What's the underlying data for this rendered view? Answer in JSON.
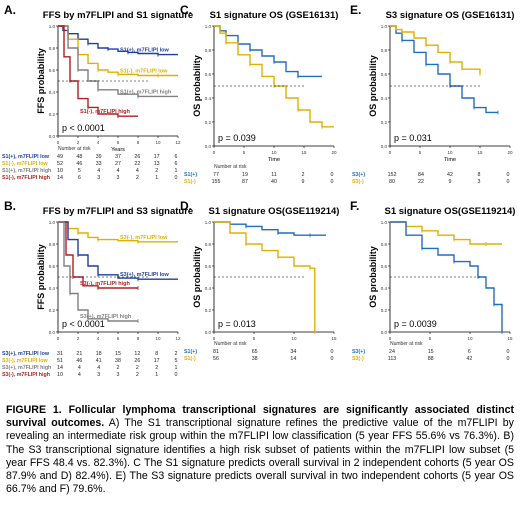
{
  "panels": {
    "A": {
      "letter": "A.",
      "title": "FFS by m7FLIPI and S1 signature",
      "ylabel": "FFS probability",
      "xlabel": "Years",
      "pvalue": "p < 0.0001",
      "xticks": [
        "0",
        "2",
        "4",
        "6",
        "8",
        "10",
        "12"
      ],
      "yticks": [
        "0.0",
        "0.2",
        "0.4",
        "0.6",
        "0.8",
        "1.0"
      ],
      "curves": [
        {
          "label": "S1(+), m7FLIPI low",
          "color": "#1f3f9f",
          "points": [
            [
              0,
              1.0
            ],
            [
              0.5,
              0.96
            ],
            [
              1,
              0.93
            ],
            [
              2,
              0.88
            ],
            [
              3,
              0.84
            ],
            [
              4,
              0.8
            ],
            [
              5,
              0.79
            ],
            [
              6,
              0.77
            ],
            [
              7,
              0.76
            ],
            [
              8,
              0.75
            ],
            [
              10,
              0.74
            ],
            [
              12,
              0.74
            ]
          ]
        },
        {
          "label": "S1(-), m7FLIPI low",
          "color": "#e0b000",
          "points": [
            [
              0,
              1.0
            ],
            [
              1,
              0.88
            ],
            [
              2,
              0.74
            ],
            [
              3,
              0.66
            ],
            [
              4,
              0.6
            ],
            [
              5,
              0.58
            ],
            [
              6,
              0.56
            ],
            [
              8,
              0.55
            ],
            [
              10,
              0.55
            ],
            [
              12,
              0.55
            ]
          ]
        },
        {
          "label": "S1(+), m7FLIPI high",
          "color": "#808080",
          "points": [
            [
              0,
              1.0
            ],
            [
              1,
              0.8
            ],
            [
              2,
              0.6
            ],
            [
              3,
              0.5
            ],
            [
              4,
              0.42
            ],
            [
              6,
              0.38
            ],
            [
              8,
              0.36
            ],
            [
              12,
              0.36
            ]
          ]
        },
        {
          "label": "S1(-), m7FLIPI high",
          "color": "#b02020",
          "points": [
            [
              0,
              1.0
            ],
            [
              0.6,
              0.72
            ],
            [
              1.2,
              0.5
            ],
            [
              2,
              0.34
            ],
            [
              3,
              0.26
            ],
            [
              4,
              0.2
            ],
            [
              6,
              0.18
            ],
            [
              8,
              0.18
            ]
          ]
        }
      ],
      "risk": {
        "heading": "Number at risk",
        "rows": [
          {
            "label": "S1(+), m7FLIPI low",
            "color": "#1f3f9f",
            "values": [
              "49",
              "48",
              "39",
              "37",
              "26",
              "17",
              "6"
            ]
          },
          {
            "label": "S1(-), m7FLIPI low",
            "color": "#e0b000",
            "values": [
              "52",
              "46",
              "33",
              "27",
              "22",
              "13",
              "6"
            ]
          },
          {
            "label": "S1(+), m7FLIPI high",
            "color": "#808080",
            "values": [
              "10",
              "5",
              "4",
              "4",
              "4",
              "2",
              "1"
            ]
          },
          {
            "label": "S1(-), m7FLIPI high",
            "color": "#b02020",
            "values": [
              "14",
              "6",
              "3",
              "3",
              "2",
              "1",
              "0"
            ]
          }
        ]
      }
    },
    "B": {
      "letter": "B.",
      "title": "FFS by m7FLIPI and S3 signature",
      "ylabel": "FFS probability",
      "xlabel": "",
      "pvalue": "p < 0.0001",
      "xticks": [
        "0",
        "2",
        "4",
        "6",
        "8",
        "10",
        "12"
      ],
      "yticks": [
        "0.0",
        "0.2",
        "0.4",
        "0.6",
        "0.8",
        "1.0"
      ],
      "curves": [
        {
          "label": "S3(-), m7FLIPI low",
          "color": "#e0b000",
          "points": [
            [
              0,
              1.0
            ],
            [
              1,
              0.94
            ],
            [
              2,
              0.9
            ],
            [
              3,
              0.86
            ],
            [
              4,
              0.84
            ],
            [
              6,
              0.83
            ],
            [
              8,
              0.82
            ],
            [
              12,
              0.82
            ]
          ]
        },
        {
          "label": "S3(+), m7FLIPI low",
          "color": "#1f3f9f",
          "points": [
            [
              0,
              1.0
            ],
            [
              1,
              0.84
            ],
            [
              2,
              0.7
            ],
            [
              3,
              0.6
            ],
            [
              4,
              0.52
            ],
            [
              6,
              0.49
            ],
            [
              8,
              0.48
            ],
            [
              12,
              0.48
            ]
          ]
        },
        {
          "label": "S3(-), m7FLIPI high",
          "color": "#b02020",
          "points": [
            [
              0,
              1.0
            ],
            [
              0.8,
              0.7
            ],
            [
              1.5,
              0.5
            ],
            [
              2.5,
              0.42
            ],
            [
              4,
              0.4
            ],
            [
              6,
              0.4
            ],
            [
              8,
              0.4
            ]
          ]
        },
        {
          "label": "S3(+), m7FLIPI high",
          "color": "#808080",
          "points": [
            [
              0,
              1.0
            ],
            [
              0.6,
              0.6
            ],
            [
              1.2,
              0.35
            ],
            [
              2,
              0.2
            ],
            [
              3,
              0.12
            ],
            [
              5,
              0.1
            ],
            [
              8,
              0.1
            ]
          ]
        }
      ],
      "risk": {
        "heading": "",
        "rows": [
          {
            "label": "S3(+), m7FLIPI low",
            "color": "#1f3f9f",
            "values": [
              "31",
              "21",
              "18",
              "15",
              "12",
              "8",
              "2"
            ]
          },
          {
            "label": "S3(-), m7FLIPI low",
            "color": "#e0b000",
            "values": [
              "51",
              "46",
              "41",
              "38",
              "26",
              "17",
              "5"
            ]
          },
          {
            "label": "S3(+), m7FLIPI high",
            "color": "#808080",
            "values": [
              "14",
              "4",
              "4",
              "2",
              "2",
              "2",
              "1"
            ]
          },
          {
            "label": "S3(-), m7FLIPI high",
            "color": "#b02020",
            "values": [
              "10",
              "4",
              "3",
              "3",
              "2",
              "1",
              "0"
            ]
          }
        ]
      }
    },
    "C": {
      "letter": "C.",
      "title": "S1 signature OS (GSE16131)",
      "ylabel": "OS probability",
      "xlabel": "Time",
      "pvalue": "p = 0.039",
      "xticks": [
        "0",
        "5",
        "10",
        "15",
        "20"
      ],
      "yticks": [
        "0.0",
        "0.2",
        "0.4",
        "0.6",
        "0.8",
        "1.0"
      ],
      "curves": [
        {
          "label": "S1(+)",
          "color": "#1f6fbf",
          "points": [
            [
              0,
              1.0
            ],
            [
              1,
              0.96
            ],
            [
              2,
              0.92
            ],
            [
              4,
              0.85
            ],
            [
              6,
              0.8
            ],
            [
              8,
              0.75
            ],
            [
              10,
              0.7
            ],
            [
              12,
              0.62
            ],
            [
              14,
              0.58
            ],
            [
              18,
              0.58
            ]
          ]
        },
        {
          "label": "S1(-)",
          "color": "#e0b000",
          "points": [
            [
              0,
              1.0
            ],
            [
              1,
              0.94
            ],
            [
              2,
              0.86
            ],
            [
              4,
              0.76
            ],
            [
              6,
              0.68
            ],
            [
              8,
              0.58
            ],
            [
              10,
              0.5
            ],
            [
              12,
              0.4
            ],
            [
              14,
              0.3
            ],
            [
              16,
              0.2
            ],
            [
              18,
              0.16
            ],
            [
              20,
              0.16
            ]
          ]
        }
      ],
      "risk": {
        "heading": "Number at risk",
        "rows": [
          {
            "label": "S1(+)",
            "color": "#1f6fbf",
            "values": [
              "77",
              "19",
              "11",
              "2",
              "0"
            ]
          },
          {
            "label": "S1(-)",
            "color": "#e0b000",
            "values": [
              "155",
              "87",
              "40",
              "9",
              "0"
            ]
          }
        ]
      }
    },
    "D": {
      "letter": "D.",
      "title": "S1 signature OS(GSE119214)",
      "ylabel": "OS probability",
      "xlabel": "",
      "pvalue": "p = 0.013",
      "xticks": [
        "0",
        "5",
        "10",
        "15"
      ],
      "yticks": [
        "0.0",
        "0.2",
        "0.4",
        "0.6",
        "0.8",
        "1.0"
      ],
      "curves": [
        {
          "label": "S1(+)",
          "color": "#1f6fbf",
          "points": [
            [
              0,
              1.0
            ],
            [
              2,
              0.98
            ],
            [
              4,
              0.96
            ],
            [
              6,
              0.93
            ],
            [
              8,
              0.9
            ],
            [
              10,
              0.88
            ],
            [
              12,
              0.88
            ],
            [
              14,
              0.88
            ]
          ]
        },
        {
          "label": "S1(-)",
          "color": "#e0b000",
          "points": [
            [
              0,
              1.0
            ],
            [
              2,
              0.9
            ],
            [
              4,
              0.8
            ],
            [
              6,
              0.74
            ],
            [
              8,
              0.68
            ],
            [
              10,
              0.6
            ],
            [
              12,
              0.58
            ],
            [
              12.6,
              0.58
            ],
            [
              12.6,
              0.0
            ]
          ]
        }
      ],
      "risk": {
        "heading": "Number at risk",
        "rows": [
          {
            "label": "S1(+)",
            "color": "#1f6fbf",
            "values": [
              "81",
              "65",
              "34",
              "0"
            ]
          },
          {
            "label": "S1(-)",
            "color": "#e0b000",
            "values": [
              "56",
              "38",
              "14",
              "0"
            ]
          }
        ]
      }
    },
    "E": {
      "letter": "E.",
      "title": "S3 signature OS (GSE16131)",
      "ylabel": "OS probability",
      "xlabel": "Time",
      "pvalue": "p = 0.031",
      "xticks": [
        "0",
        "5",
        "10",
        "15",
        "20"
      ],
      "yticks": [
        "0.0",
        "0.2",
        "0.4",
        "0.6",
        "0.8",
        "1.0"
      ],
      "curves": [
        {
          "label": "S3(+)",
          "color": "#1f6fbf",
          "points": [
            [
              0,
              1.0
            ],
            [
              1,
              0.94
            ],
            [
              2,
              0.88
            ],
            [
              4,
              0.78
            ],
            [
              6,
              0.68
            ],
            [
              8,
              0.6
            ],
            [
              10,
              0.5
            ],
            [
              12,
              0.4
            ],
            [
              14,
              0.32
            ],
            [
              16,
              0.28
            ],
            [
              18,
              0.28
            ]
          ]
        },
        {
          "label": "S3(-)",
          "color": "#e0b000",
          "points": [
            [
              0,
              1.0
            ],
            [
              1,
              0.97
            ],
            [
              2,
              0.95
            ],
            [
              4,
              0.9
            ],
            [
              6,
              0.84
            ],
            [
              8,
              0.78
            ],
            [
              10,
              0.7
            ],
            [
              12,
              0.64
            ],
            [
              15,
              0.6
            ]
          ]
        }
      ],
      "risk": {
        "heading": "",
        "rows": [
          {
            "label": "S3(+)",
            "color": "#1f6fbf",
            "values": [
              "152",
              "84",
              "42",
              "8",
              "0"
            ]
          },
          {
            "label": "S3(-)",
            "color": "#e0b000",
            "values": [
              "80",
              "22",
              "9",
              "3",
              "0"
            ]
          }
        ]
      }
    },
    "F": {
      "letter": "F.",
      "title": "S1 signature OS(GSE119214)",
      "ylabel": "OS probability",
      "xlabel": "",
      "pvalue": "p = 0.0039",
      "xticks": [
        "0",
        "5",
        "10",
        "15"
      ],
      "yticks": [
        "0.0",
        "0.2",
        "0.4",
        "0.6",
        "0.8",
        "1.0"
      ],
      "curves": [
        {
          "label": "S3(-)",
          "color": "#e0b000",
          "points": [
            [
              0,
              1.0
            ],
            [
              2,
              0.96
            ],
            [
              4,
              0.92
            ],
            [
              6,
              0.88
            ],
            [
              8,
              0.84
            ],
            [
              10,
              0.8
            ],
            [
              12,
              0.8
            ],
            [
              14,
              0.8
            ]
          ]
        },
        {
          "label": "S3(+)",
          "color": "#1f6fbf",
          "points": [
            [
              0,
              1.0
            ],
            [
              2,
              0.88
            ],
            [
              4,
              0.76
            ],
            [
              6,
              0.7
            ],
            [
              8,
              0.64
            ],
            [
              10,
              0.6
            ],
            [
              11,
              0.5
            ],
            [
              12,
              0.4
            ],
            [
              13,
              0.25
            ],
            [
              14,
              0.12
            ],
            [
              14,
              0.0
            ]
          ]
        }
      ],
      "risk": {
        "heading": "Number at risk",
        "rows": [
          {
            "label": "S3(+)",
            "color": "#1f6fbf",
            "values": [
              "24",
              "15",
              "6",
              "0"
            ]
          },
          {
            "label": "S3(-)",
            "color": "#e0b000",
            "values": [
              "113",
              "88",
              "42",
              "0"
            ]
          }
        ]
      }
    }
  },
  "caption": {
    "lead": "FIGURE 1. Follicular lymphoma transcriptional signatures are significantly associated distinct survival outcomes.",
    "body": " A) The S1 transcriptional signature refines the predictive value of the m7FLIPI by revealing an intermediate risk group within the m7FLIPI low classification (5 year FFS 55.6% vs 76.3%).  B) The S3 transcriptional signature identifies a high risk subset of patients  within the m7FLIPI low subset (5 year FFS 48.4  vs. 82.3%). C The S1 signature predicts overall survival in 2 independent cohorts  (5 year OS 87.9% and D) 82.4%).  E) The  S3 signature predicts overall survival in two independent cohorts  (5 year OS 66.7% and F) 79.6%."
  }
}
